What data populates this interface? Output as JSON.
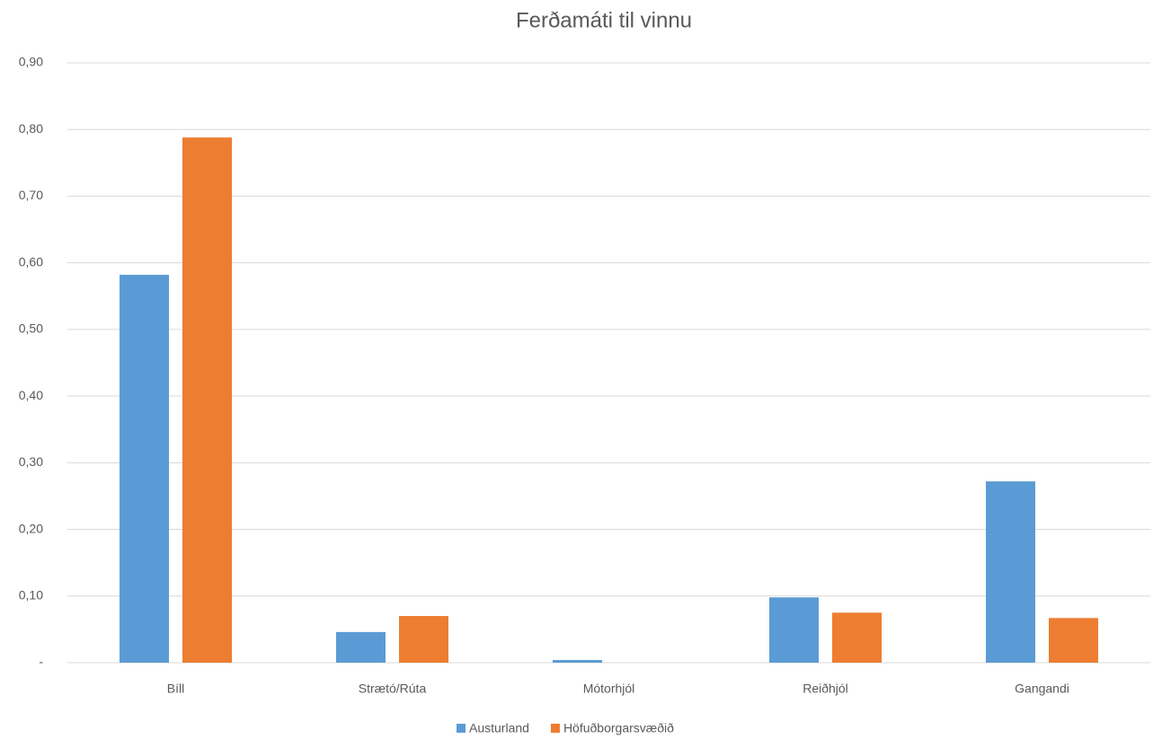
{
  "chart_data": {
    "type": "bar",
    "title": "Ferðamáti til vinnu",
    "categories": [
      "Bíll",
      "Strætó/Rúta",
      "Mótorhjól",
      "Reiðhjól",
      "Gangandi"
    ],
    "series": [
      {
        "name": "Austurland",
        "color": "#5b9bd5",
        "values": [
          0.582,
          0.046,
          0.004,
          0.098,
          0.272
        ]
      },
      {
        "name": "Höfuðborgarsvæðið",
        "color": "#ed7d31",
        "values": [
          0.788,
          0.07,
          0,
          0.075,
          0.067
        ]
      }
    ],
    "ylim": [
      0,
      0.9
    ],
    "yticks": [
      {
        "value": 0,
        "label": "-"
      },
      {
        "value": 0.1,
        "label": "0,10"
      },
      {
        "value": 0.2,
        "label": "0,20"
      },
      {
        "value": 0.3,
        "label": "0,30"
      },
      {
        "value": 0.4,
        "label": "0,40"
      },
      {
        "value": 0.5,
        "label": "0,50"
      },
      {
        "value": 0.6,
        "label": "0,60"
      },
      {
        "value": 0.7,
        "label": "0,70"
      },
      {
        "value": 0.8,
        "label": "0,80"
      },
      {
        "value": 0.9,
        "label": "0,90"
      }
    ],
    "grid": true,
    "legend": "bottom"
  }
}
